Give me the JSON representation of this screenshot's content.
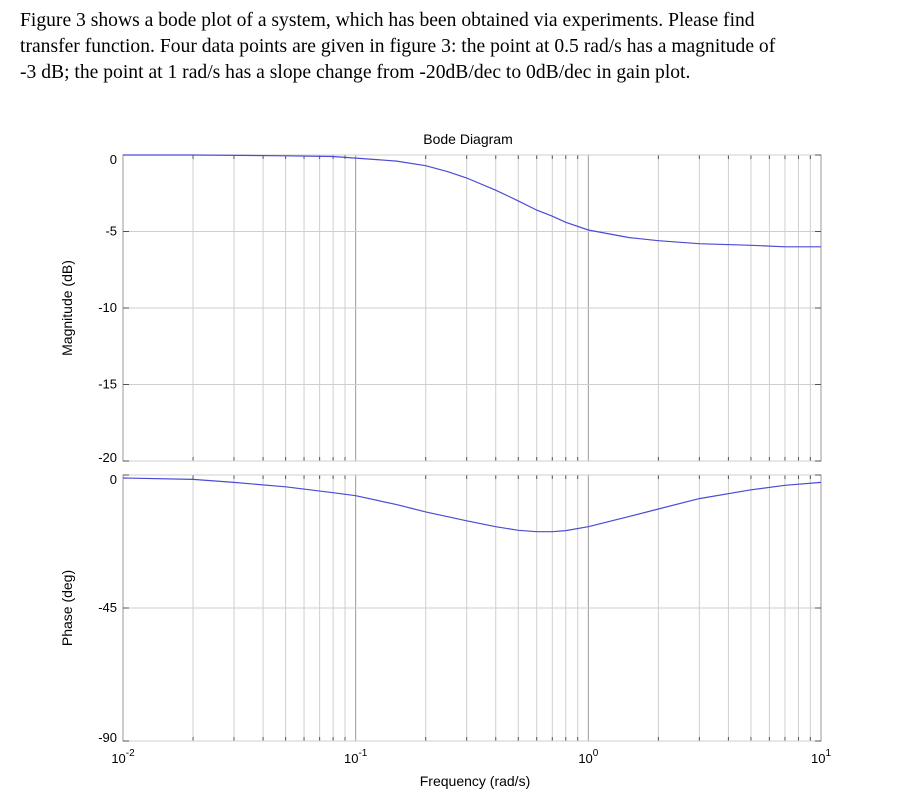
{
  "question": {
    "lines": [
      "Figure 3 shows a bode plot of a system, which has been obtained via experiments. Please find",
      "transfer function. Four data points are given in figure 3: the point at 0.5 rad/s has a magnitude of",
      "-3 dB; the point at 1 rad/s has a slope change from -20dB/dec to 0dB/dec in gain plot."
    ]
  },
  "chart_data": [
    {
      "type": "line",
      "panel": "magnitude",
      "title": "Bode Diagram",
      "ylabel": "Magnitude (dB)",
      "xlabel": "",
      "xscale": "log",
      "xlim": [
        0.01,
        10
      ],
      "ylim": [
        -20,
        0
      ],
      "yticks": [
        0,
        -5,
        -10,
        -15,
        -20
      ],
      "ytick_labels": [
        "0",
        "-5",
        "-10",
        "-15",
        "-20"
      ],
      "grid": true,
      "color": "#4b4bd6",
      "x": [
        0.01,
        0.02,
        0.05,
        0.08,
        0.1,
        0.15,
        0.2,
        0.25,
        0.3,
        0.4,
        0.5,
        0.6,
        0.7,
        0.8,
        1,
        1.5,
        2,
        3,
        5,
        7,
        10
      ],
      "y": [
        0,
        0,
        -0.05,
        -0.1,
        -0.2,
        -0.4,
        -0.7,
        -1.1,
        -1.5,
        -2.3,
        -3.0,
        -3.6,
        -4.0,
        -4.4,
        -4.9,
        -5.4,
        -5.6,
        -5.8,
        -5.9,
        -6.0,
        -6.0
      ]
    },
    {
      "type": "line",
      "panel": "phase",
      "title": "",
      "ylabel": "Phase (deg)",
      "xlabel": "Frequency  (rad/s)",
      "xscale": "log",
      "xlim": [
        0.01,
        10
      ],
      "ylim": [
        -90,
        0
      ],
      "yticks": [
        0,
        -45,
        -90
      ],
      "ytick_labels": [
        "0",
        "-45",
        "-90"
      ],
      "xticks": [
        0.01,
        0.1,
        1,
        10
      ],
      "xtick_base": "10",
      "xtick_exponents": [
        "-2",
        "-1",
        "0",
        "1"
      ],
      "grid": true,
      "color": "#4b4bd6",
      "x": [
        0.01,
        0.02,
        0.03,
        0.05,
        0.08,
        0.1,
        0.15,
        0.2,
        0.3,
        0.4,
        0.5,
        0.6,
        0.7,
        0.8,
        1,
        1.5,
        2,
        3,
        5,
        7,
        10
      ],
      "y": [
        -1,
        -1.5,
        -2.5,
        -4,
        -6,
        -7,
        -10,
        -12.5,
        -15.5,
        -17.5,
        -18.7,
        -19.2,
        -19.2,
        -18.8,
        -17.5,
        -14,
        -11.5,
        -8,
        -5,
        -3.5,
        -2.5
      ]
    }
  ]
}
